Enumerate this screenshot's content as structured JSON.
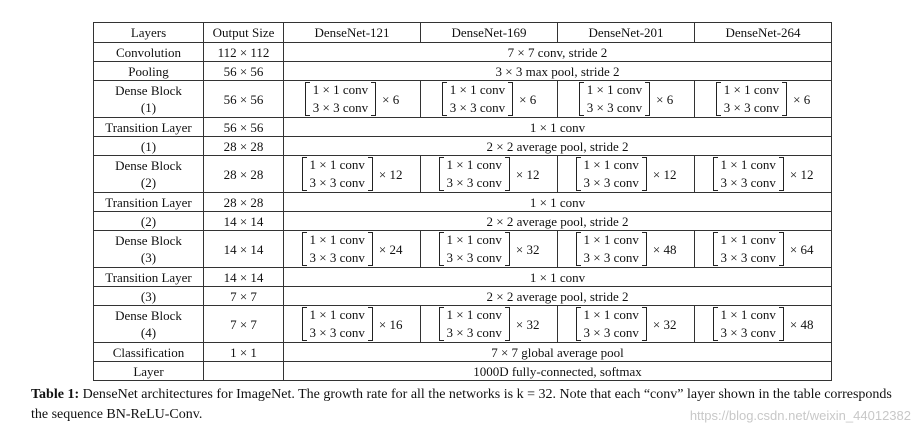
{
  "table": {
    "headers": [
      "Layers",
      "Output Size",
      "DenseNet-121",
      "DenseNet-169",
      "DenseNet-201",
      "DenseNet-264"
    ],
    "conv_row": {
      "layer": "Convolution",
      "size": "112 × 112",
      "spec": "7 × 7 conv, stride 2"
    },
    "pool_row": {
      "layer": "Pooling",
      "size": "56 × 56",
      "spec": "3 × 3 max pool, stride 2"
    },
    "conv1x1": "1 × 1 conv",
    "conv3x3": "3 × 3 conv",
    "dense_blocks": [
      {
        "line1": "Dense Block",
        "line2": "(1)",
        "size": "56 × 56",
        "mults": [
          "× 6",
          "× 6",
          "× 6",
          "× 6"
        ]
      },
      {
        "line1": "Dense Block",
        "line2": "(2)",
        "size": "28 × 28",
        "mults": [
          "× 12",
          "× 12",
          "× 12",
          "× 12"
        ]
      },
      {
        "line1": "Dense Block",
        "line2": "(3)",
        "size": "14 × 14",
        "mults": [
          "× 24",
          "× 32",
          "× 48",
          "× 64"
        ]
      },
      {
        "line1": "Dense Block",
        "line2": "(4)",
        "size": "7 × 7",
        "mults": [
          "× 16",
          "× 32",
          "× 32",
          "× 48"
        ]
      }
    ],
    "transitions": [
      {
        "line1": "Transition Layer",
        "line2": "(1)",
        "size1": "56 × 56",
        "size2": "28 × 28",
        "spec1": "1 × 1 conv",
        "spec2": "2 × 2 average pool, stride 2"
      },
      {
        "line1": "Transition Layer",
        "line2": "(2)",
        "size1": "28 × 28",
        "size2": "14 × 14",
        "spec1": "1 × 1 conv",
        "spec2": "2 × 2 average pool, stride 2"
      },
      {
        "line1": "Transition Layer",
        "line2": "(3)",
        "size1": "14 × 14",
        "size2": "7 × 7",
        "spec1": "1 × 1 conv",
        "spec2": "2 × 2 average pool, stride 2"
      }
    ],
    "classification": {
      "line1": "Classification",
      "line2": "Layer",
      "size": "1 × 1",
      "spec1": "7 × 7 global average pool",
      "spec2": "1000D fully-connected, softmax"
    }
  },
  "caption": {
    "label": "Table 1:",
    "text": " DenseNet architectures for ImageNet. The growth rate for all the networks is k = 32. Note that each “conv” layer shown in the table corresponds the sequence BN-ReLU-Conv."
  },
  "watermark": "https://blog.csdn.net/weixin_44012382"
}
